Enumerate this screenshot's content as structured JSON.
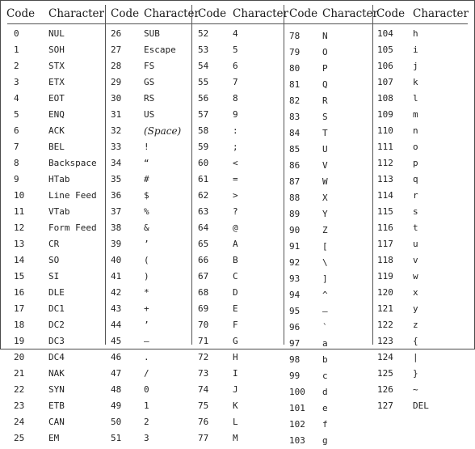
{
  "headers": [
    {
      "code": "Code",
      "character": "Character"
    },
    {
      "code": "Code",
      "character": "Character"
    },
    {
      "code": "Code",
      "character": "Character"
    },
    {
      "code": "Code",
      "character": "Character"
    },
    {
      "code": "Code",
      "character": "Character"
    }
  ],
  "columns": [
    [
      {
        "code": "0",
        "char": "NUL"
      },
      {
        "code": "1",
        "char": "SOH"
      },
      {
        "code": "2",
        "char": "STX"
      },
      {
        "code": "3",
        "char": "ETX"
      },
      {
        "code": "4",
        "char": "EOT"
      },
      {
        "code": "5",
        "char": "ENQ"
      },
      {
        "code": "6",
        "char": "ACK"
      },
      {
        "code": "7",
        "char": "BEL"
      },
      {
        "code": "8",
        "char": "Backspace"
      },
      {
        "code": "9",
        "char": "HTab"
      },
      {
        "code": "10",
        "char": "Line Feed"
      },
      {
        "code": "11",
        "char": "VTab"
      },
      {
        "code": "12",
        "char": "Form Feed"
      },
      {
        "code": "13",
        "char": "CR"
      },
      {
        "code": "14",
        "char": "SO"
      },
      {
        "code": "15",
        "char": "SI"
      },
      {
        "code": "16",
        "char": "DLE"
      },
      {
        "code": "17",
        "char": "DC1"
      },
      {
        "code": "18",
        "char": "DC2"
      },
      {
        "code": "19",
        "char": "DC3"
      },
      {
        "code": "20",
        "char": "DC4"
      },
      {
        "code": "21",
        "char": "NAK"
      },
      {
        "code": "22",
        "char": "SYN"
      },
      {
        "code": "23",
        "char": "ETB"
      },
      {
        "code": "24",
        "char": "CAN"
      },
      {
        "code": "25",
        "char": "EM"
      }
    ],
    [
      {
        "code": "26",
        "char": "SUB"
      },
      {
        "code": "27",
        "char": "Escape"
      },
      {
        "code": "28",
        "char": "FS"
      },
      {
        "code": "29",
        "char": "GS"
      },
      {
        "code": "30",
        "char": "RS"
      },
      {
        "code": "31",
        "char": "US"
      },
      {
        "code": "32",
        "char": "(Space)"
      },
      {
        "code": "33",
        "char": "!"
      },
      {
        "code": "34",
        "char": "“"
      },
      {
        "code": "35",
        "char": "#"
      },
      {
        "code": "36",
        "char": "$"
      },
      {
        "code": "37",
        "char": "%"
      },
      {
        "code": "38",
        "char": "&"
      },
      {
        "code": "39",
        "char": "’"
      },
      {
        "code": "40",
        "char": "("
      },
      {
        "code": "41",
        "char": ")"
      },
      {
        "code": "42",
        "char": "*"
      },
      {
        "code": "43",
        "char": "+"
      },
      {
        "code": "44",
        "char": "’"
      },
      {
        "code": "45",
        "char": "–"
      },
      {
        "code": "46",
        "char": "."
      },
      {
        "code": "47",
        "char": "/"
      },
      {
        "code": "48",
        "char": "0"
      },
      {
        "code": "49",
        "char": "1"
      },
      {
        "code": "50",
        "char": "2"
      },
      {
        "code": "51",
        "char": "3"
      }
    ],
    [
      {
        "code": "52",
        "char": "4"
      },
      {
        "code": "53",
        "char": "5"
      },
      {
        "code": "54",
        "char": "6"
      },
      {
        "code": "55",
        "char": "7"
      },
      {
        "code": "56",
        "char": "8"
      },
      {
        "code": "57",
        "char": "9"
      },
      {
        "code": "58",
        "char": ":"
      },
      {
        "code": "59",
        "char": ";"
      },
      {
        "code": "60",
        "char": "<"
      },
      {
        "code": "61",
        "char": "="
      },
      {
        "code": "62",
        "char": ">"
      },
      {
        "code": "63",
        "char": "?"
      },
      {
        "code": "64",
        "char": "@"
      },
      {
        "code": "65",
        "char": "A"
      },
      {
        "code": "66",
        "char": "B"
      },
      {
        "code": "67",
        "char": "C"
      },
      {
        "code": "68",
        "char": "D"
      },
      {
        "code": "69",
        "char": "E"
      },
      {
        "code": "70",
        "char": "F"
      },
      {
        "code": "71",
        "char": "G"
      },
      {
        "code": "72",
        "char": "H"
      },
      {
        "code": "73",
        "char": "I"
      },
      {
        "code": "74",
        "char": "J"
      },
      {
        "code": "75",
        "char": "K"
      },
      {
        "code": "76",
        "char": "L"
      },
      {
        "code": "77",
        "char": "M"
      }
    ],
    [
      {
        "code": "78",
        "char": "N"
      },
      {
        "code": "79",
        "char": "O"
      },
      {
        "code": "80",
        "char": "P"
      },
      {
        "code": "81",
        "char": "Q"
      },
      {
        "code": "82",
        "char": "R"
      },
      {
        "code": "83",
        "char": "S"
      },
      {
        "code": "84",
        "char": "T"
      },
      {
        "code": "85",
        "char": "U"
      },
      {
        "code": "86",
        "char": "V"
      },
      {
        "code": "87",
        "char": "W"
      },
      {
        "code": "88",
        "char": "X"
      },
      {
        "code": "89",
        "char": "Y"
      },
      {
        "code": "90",
        "char": "Z"
      },
      {
        "code": "91",
        "char": "["
      },
      {
        "code": "92",
        "char": "\\"
      },
      {
        "code": "93",
        "char": "]"
      },
      {
        "code": "94",
        "char": "^"
      },
      {
        "code": "95",
        "char": "—"
      },
      {
        "code": "96",
        "char": "`"
      },
      {
        "code": "97",
        "char": "a"
      },
      {
        "code": "98",
        "char": "b"
      },
      {
        "code": "99",
        "char": "c"
      },
      {
        "code": "100",
        "char": "d"
      },
      {
        "code": "101",
        "char": "e"
      },
      {
        "code": "102",
        "char": "f"
      },
      {
        "code": "103",
        "char": "g"
      }
    ],
    [
      {
        "code": "104",
        "char": "h"
      },
      {
        "code": "105",
        "char": "i"
      },
      {
        "code": "106",
        "char": "j"
      },
      {
        "code": "107",
        "char": "k"
      },
      {
        "code": "108",
        "char": "l"
      },
      {
        "code": "109",
        "char": "m"
      },
      {
        "code": "110",
        "char": "n"
      },
      {
        "code": "111",
        "char": "o"
      },
      {
        "code": "112",
        "char": "p"
      },
      {
        "code": "113",
        "char": "q"
      },
      {
        "code": "114",
        "char": "r"
      },
      {
        "code": "115",
        "char": "s"
      },
      {
        "code": "116",
        "char": "t"
      },
      {
        "code": "117",
        "char": "u"
      },
      {
        "code": "118",
        "char": "v"
      },
      {
        "code": "119",
        "char": "w"
      },
      {
        "code": "120",
        "char": "x"
      },
      {
        "code": "121",
        "char": "y"
      },
      {
        "code": "122",
        "char": "z"
      },
      {
        "code": "123",
        "char": "{"
      },
      {
        "code": "124",
        "char": "|"
      },
      {
        "code": "125",
        "char": "}"
      },
      {
        "code": "126",
        "char": "~"
      },
      {
        "code": "127",
        "char": "DEL"
      }
    ]
  ]
}
